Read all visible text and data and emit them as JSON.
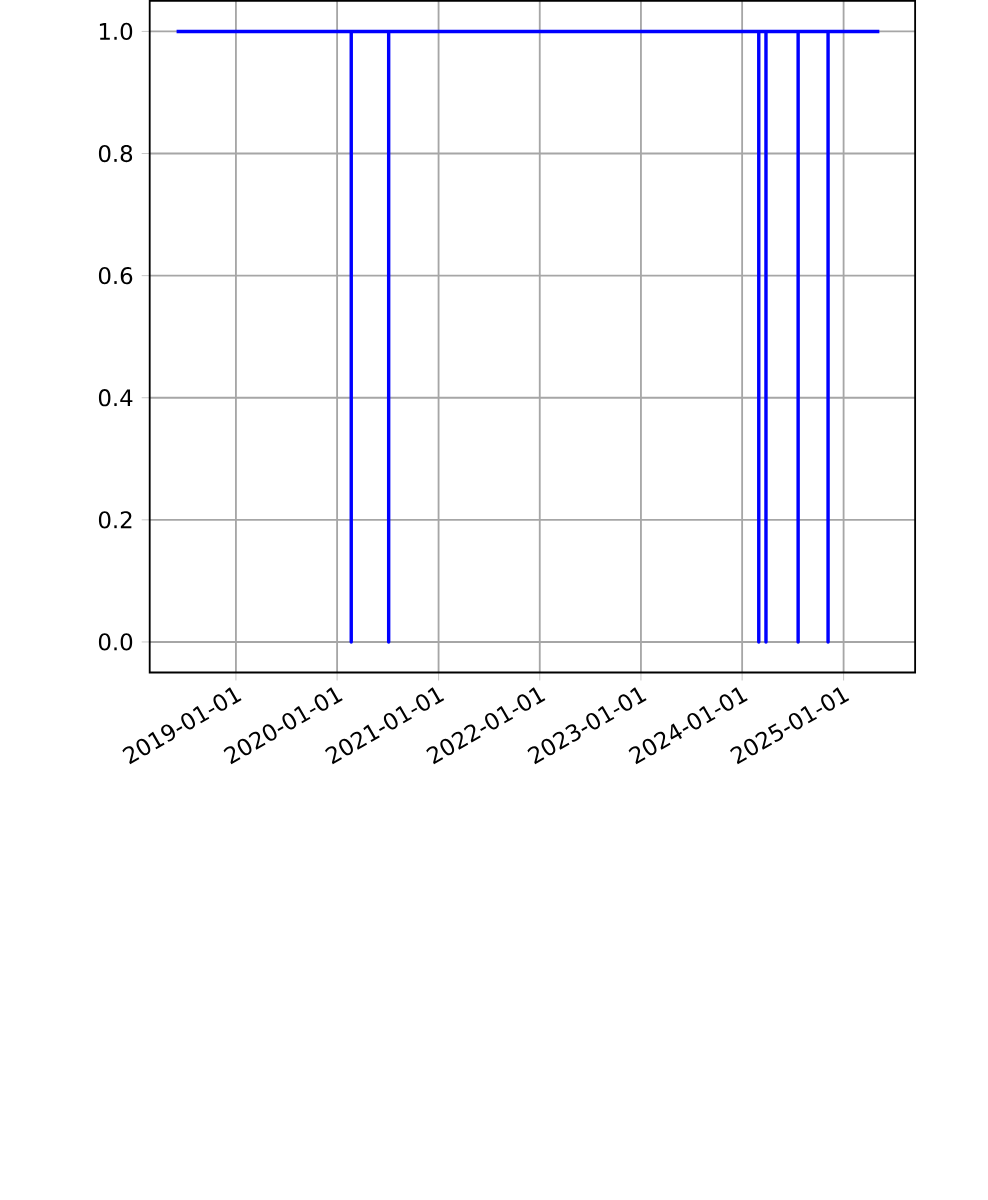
{
  "chart_data": {
    "type": "line",
    "x": [
      "2018-06-01",
      "2020-02-21",
      "2020-02-21",
      "2020-02-21",
      "2020-07-05",
      "2020-07-05",
      "2020-07-05",
      "2024-03-01",
      "2024-03-01",
      "2024-03-01",
      "2024-03-27",
      "2024-03-27",
      "2024-03-27",
      "2024-07-21",
      "2024-07-21",
      "2024-07-21",
      "2024-11-06",
      "2024-11-06",
      "2024-11-06",
      "2025-05-10"
    ],
    "series": [
      {
        "color": "#0000ff",
        "values": [
          1,
          1,
          0,
          1,
          1,
          0,
          1,
          1,
          0,
          1,
          1,
          0,
          1,
          1,
          0,
          1,
          1,
          0,
          1,
          1
        ]
      }
    ],
    "xlim": [
      "2018-02-24",
      "2025-09-16"
    ],
    "xticks": [
      "2019-01-01",
      "2020-01-01",
      "2021-01-01",
      "2022-01-01",
      "2023-01-01",
      "2024-01-01",
      "2025-01-01"
    ],
    "ylim": [
      -0.05,
      1.05
    ],
    "yticks": [
      {
        "value": 0,
        "label": "0.0"
      },
      {
        "value": 0.2,
        "label": "0.2"
      },
      {
        "value": 0.4,
        "label": "0.4"
      },
      {
        "value": 0.6,
        "label": "0.6"
      },
      {
        "value": 0.8,
        "label": "0.8"
      },
      {
        "value": 1,
        "label": "1.0"
      }
    ],
    "grid": true,
    "marker": "none",
    "line_style": "solid"
  }
}
